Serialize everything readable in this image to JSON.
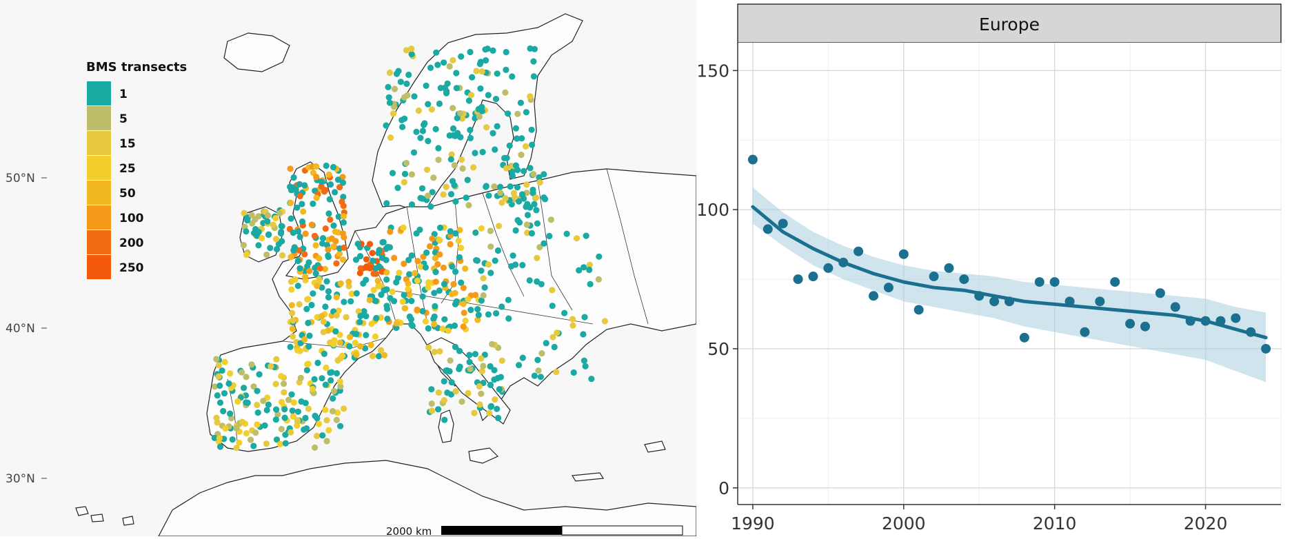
{
  "map": {
    "legend": {
      "title": "BMS transects",
      "items": [
        {
          "label": "1",
          "color": "#1aa9a3"
        },
        {
          "label": "5",
          "color": "#bdbd6a"
        },
        {
          "label": "15",
          "color": "#e6c93e"
        },
        {
          "label": "25",
          "color": "#f2cf2c"
        },
        {
          "label": "50",
          "color": "#f2b821"
        },
        {
          "label": "100",
          "color": "#f5991a"
        },
        {
          "label": "200",
          "color": "#f26b12"
        },
        {
          "label": "250",
          "color": "#f25a0a"
        }
      ]
    },
    "lat_labels": [
      {
        "label": "50°N",
        "lat": 50
      },
      {
        "label": "40°N",
        "lat": 40
      },
      {
        "label": "30°N",
        "lat": 30
      }
    ],
    "scale_bar": {
      "label": "2000 km"
    }
  },
  "chart_data": {
    "type": "scatter",
    "facet_title": "Europe",
    "xlabel": "",
    "ylabel": "",
    "xlim": [
      1989,
      2025
    ],
    "ylim": [
      -6,
      160
    ],
    "x_ticks": [
      1990,
      2000,
      2010,
      2020
    ],
    "y_ticks": [
      0,
      50,
      100,
      150
    ],
    "grid": true,
    "point_color": "#1b6f8f",
    "line_color": "#1b6f8f",
    "band_color": "#a9cde0",
    "points": [
      {
        "x": 1990,
        "y": 118
      },
      {
        "x": 1991,
        "y": 93
      },
      {
        "x": 1992,
        "y": 95
      },
      {
        "x": 1993,
        "y": 75
      },
      {
        "x": 1994,
        "y": 76
      },
      {
        "x": 1995,
        "y": 79
      },
      {
        "x": 1996,
        "y": 81
      },
      {
        "x": 1997,
        "y": 85
      },
      {
        "x": 1998,
        "y": 69
      },
      {
        "x": 1999,
        "y": 72
      },
      {
        "x": 2000,
        "y": 84
      },
      {
        "x": 2001,
        "y": 64
      },
      {
        "x": 2002,
        "y": 76
      },
      {
        "x": 2003,
        "y": 79
      },
      {
        "x": 2004,
        "y": 75
      },
      {
        "x": 2005,
        "y": 69
      },
      {
        "x": 2006,
        "y": 67
      },
      {
        "x": 2007,
        "y": 67
      },
      {
        "x": 2008,
        "y": 54
      },
      {
        "x": 2009,
        "y": 74
      },
      {
        "x": 2010,
        "y": 74
      },
      {
        "x": 2011,
        "y": 67
      },
      {
        "x": 2012,
        "y": 56
      },
      {
        "x": 2013,
        "y": 67
      },
      {
        "x": 2014,
        "y": 74
      },
      {
        "x": 2015,
        "y": 59
      },
      {
        "x": 2016,
        "y": 58
      },
      {
        "x": 2017,
        "y": 70
      },
      {
        "x": 2018,
        "y": 65
      },
      {
        "x": 2019,
        "y": 60
      },
      {
        "x": 2020,
        "y": 60
      },
      {
        "x": 2021,
        "y": 60
      },
      {
        "x": 2022,
        "y": 61
      },
      {
        "x": 2023,
        "y": 56
      },
      {
        "x": 2024,
        "y": 50
      }
    ],
    "trend": [
      {
        "x": 1990,
        "y": 101,
        "lo": 95,
        "hi": 108
      },
      {
        "x": 1992,
        "y": 92,
        "lo": 87,
        "hi": 99
      },
      {
        "x": 1994,
        "y": 86,
        "lo": 80,
        "hi": 92
      },
      {
        "x": 1996,
        "y": 81,
        "lo": 75,
        "hi": 87
      },
      {
        "x": 1998,
        "y": 77,
        "lo": 71,
        "hi": 83
      },
      {
        "x": 2000,
        "y": 74,
        "lo": 67,
        "hi": 80
      },
      {
        "x": 2002,
        "y": 72,
        "lo": 65,
        "hi": 78
      },
      {
        "x": 2004,
        "y": 71,
        "lo": 63,
        "hi": 77
      },
      {
        "x": 2006,
        "y": 69,
        "lo": 61,
        "hi": 76
      },
      {
        "x": 2008,
        "y": 67,
        "lo": 58,
        "hi": 74
      },
      {
        "x": 2010,
        "y": 66,
        "lo": 56,
        "hi": 73
      },
      {
        "x": 2012,
        "y": 65,
        "lo": 54,
        "hi": 72
      },
      {
        "x": 2014,
        "y": 64,
        "lo": 52,
        "hi": 71
      },
      {
        "x": 2016,
        "y": 63,
        "lo": 50,
        "hi": 70
      },
      {
        "x": 2018,
        "y": 62,
        "lo": 48,
        "hi": 69
      },
      {
        "x": 2020,
        "y": 60,
        "lo": 46,
        "hi": 68
      },
      {
        "x": 2022,
        "y": 57,
        "lo": 42,
        "hi": 65
      },
      {
        "x": 2024,
        "y": 54,
        "lo": 38,
        "hi": 63
      }
    ]
  }
}
